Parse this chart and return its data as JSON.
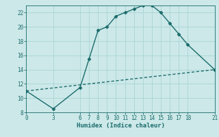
{
  "title": "",
  "xlabel": "Humidex (Indice chaleur)",
  "ylabel": "",
  "background_color": "#cce8e8",
  "line_color": "#1a6b6b",
  "xlim": [
    0,
    21
  ],
  "ylim": [
    8,
    23
  ],
  "xticks": [
    0,
    3,
    6,
    7,
    8,
    9,
    10,
    11,
    12,
    13,
    14,
    15,
    16,
    17,
    18,
    21
  ],
  "yticks": [
    8,
    10,
    12,
    14,
    16,
    18,
    20,
    22
  ],
  "line1_x": [
    0,
    3,
    6,
    7,
    8,
    9,
    10,
    11,
    12,
    13,
    14,
    15,
    16,
    17,
    18,
    21
  ],
  "line1_y": [
    11.0,
    8.5,
    11.5,
    15.5,
    19.5,
    20.0,
    21.5,
    22.0,
    22.5,
    23.0,
    23.0,
    22.0,
    20.5,
    19.0,
    17.5,
    14.0
  ],
  "line2_x": [
    0,
    21
  ],
  "line2_y": [
    11.0,
    14.0
  ],
  "marker": "D",
  "markersize": 2.5,
  "linewidth": 1.0,
  "grid_color": "#aad4d4",
  "tick_fontsize": 5.5,
  "xlabel_fontsize": 6.5,
  "grid_linewidth": 0.6
}
